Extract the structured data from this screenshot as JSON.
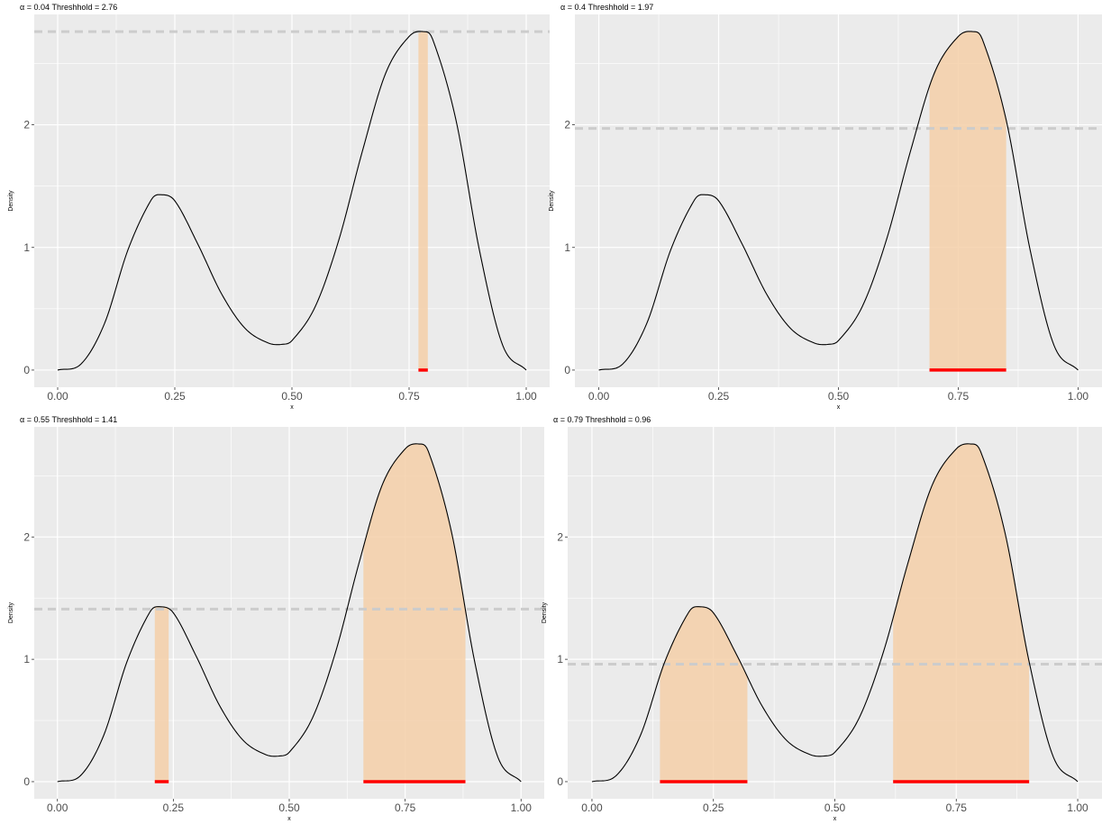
{
  "chart_data": [
    {
      "type": "area",
      "title": "α = 0.04 Threshhold = 2.76",
      "xlabel": "x",
      "ylabel": "Density",
      "threshold": 2.76,
      "highlight_intervals": [
        [
          0.77,
          0.79
        ]
      ],
      "xlim": [
        0,
        1
      ],
      "ylim": [
        0,
        2.8
      ],
      "grid": true
    },
    {
      "type": "area",
      "title": "α = 0.4 Threshhold = 1.97",
      "xlabel": "x",
      "ylabel": "Density",
      "threshold": 1.97,
      "highlight_intervals": [
        [
          0.69,
          0.85
        ]
      ],
      "xlim": [
        0,
        1
      ],
      "ylim": [
        0,
        2.8
      ],
      "grid": true
    },
    {
      "type": "area",
      "title": "α = 0.55 Threshhold = 1.41",
      "xlabel": "x",
      "ylabel": "Density",
      "threshold": 1.41,
      "highlight_intervals": [
        [
          0.21,
          0.24
        ],
        [
          0.66,
          0.88
        ]
      ],
      "xlim": [
        0,
        1
      ],
      "ylim": [
        0,
        2.8
      ],
      "grid": true
    },
    {
      "type": "area",
      "title": "α = 0.79 Threshhold = 0.96",
      "xlabel": "x",
      "ylabel": "Density",
      "threshold": 0.96,
      "highlight_intervals": [
        [
          0.14,
          0.32
        ],
        [
          0.62,
          0.9
        ]
      ],
      "xlim": [
        0,
        1
      ],
      "ylim": [
        0,
        2.8
      ],
      "grid": true
    }
  ],
  "density_curve": {
    "x": [
      0,
      0.05,
      0.1,
      0.15,
      0.2,
      0.22,
      0.25,
      0.3,
      0.35,
      0.4,
      0.45,
      0.48,
      0.5,
      0.55,
      0.6,
      0.65,
      0.7,
      0.75,
      0.78,
      0.8,
      0.85,
      0.9,
      0.95,
      1.0
    ],
    "y": [
      0.0,
      0.05,
      0.38,
      0.98,
      1.39,
      1.43,
      1.38,
      1.02,
      0.62,
      0.34,
      0.22,
      0.21,
      0.24,
      0.52,
      1.06,
      1.78,
      2.42,
      2.72,
      2.76,
      2.7,
      2.04,
      0.98,
      0.2,
      0.0
    ]
  },
  "x_ticks": [
    "0.00",
    "0.25",
    "0.50",
    "0.75",
    "1.00"
  ],
  "y_ticks": [
    "0",
    "1",
    "2"
  ],
  "colors": {
    "panel_bg": "#ebebeb",
    "grid": "#ffffff",
    "curve": "#000000",
    "fill": "#f5cfa8",
    "interval": "#ff0000",
    "threshold": "#cccccc"
  }
}
